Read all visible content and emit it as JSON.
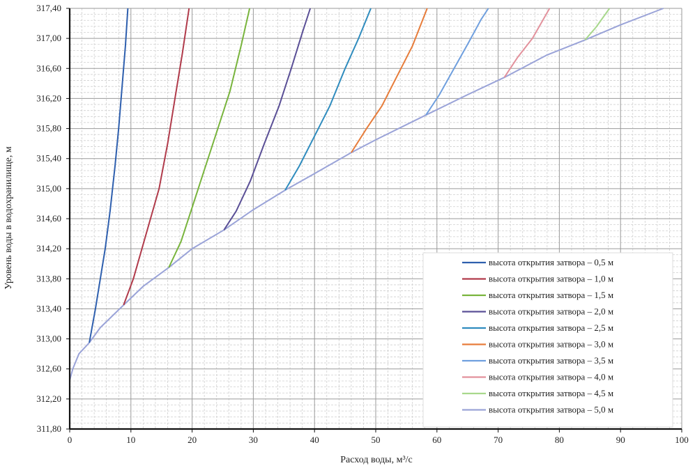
{
  "chart_data": {
    "type": "line",
    "title": "",
    "xlabel": "Расход воды, м³/с",
    "ylabel": "Уровень воды в водохранилище, м",
    "xlim": [
      0,
      100
    ],
    "ylim": [
      311.8,
      317.4
    ],
    "x_ticks": [
      0,
      10,
      20,
      30,
      40,
      50,
      60,
      70,
      80,
      90,
      100
    ],
    "x_tick_labels": [
      "0",
      "10",
      "20",
      "30",
      "40",
      "50",
      "60",
      "70",
      "80",
      "90",
      "100"
    ],
    "y_ticks": [
      311.8,
      312.2,
      312.6,
      313.0,
      313.4,
      313.8,
      314.2,
      314.6,
      315.0,
      315.4,
      315.8,
      316.2,
      316.6,
      317.0,
      317.4
    ],
    "y_tick_labels": [
      "311,80",
      "312,20",
      "312,60",
      "313,00",
      "313,40",
      "313,80",
      "314,20",
      "314,60",
      "315,00",
      "315,40",
      "315,80",
      "316,20",
      "316,60",
      "317,00",
      "317,40"
    ],
    "grid": true,
    "legend_position": "bottom-right",
    "series": [
      {
        "name": "высота открытия затвора – 0,5 м",
        "color": "#2e5fae",
        "points": [
          [
            3.2,
            312.95
          ],
          [
            4.2,
            313.4
          ],
          [
            5.0,
            313.8
          ],
          [
            5.8,
            314.2
          ],
          [
            6.6,
            314.7
          ],
          [
            7.4,
            315.3
          ],
          [
            8.0,
            315.8
          ],
          [
            8.6,
            316.4
          ],
          [
            9.1,
            316.9
          ],
          [
            9.5,
            317.4
          ]
        ]
      },
      {
        "name": "высота открытия затвора – 1,0 м",
        "color": "#b03a4a",
        "points": [
          [
            8.8,
            313.45
          ],
          [
            10.4,
            313.8
          ],
          [
            11.8,
            314.2
          ],
          [
            13.2,
            314.6
          ],
          [
            14.6,
            315.0
          ],
          [
            16.0,
            315.6
          ],
          [
            17.2,
            316.2
          ],
          [
            18.4,
            316.8
          ],
          [
            19.5,
            317.4
          ]
        ]
      },
      {
        "name": "высота открытия затвора – 1,5 м",
        "color": "#78b43c",
        "points": [
          [
            16.2,
            313.95
          ],
          [
            18.2,
            314.3
          ],
          [
            20.2,
            314.8
          ],
          [
            22.2,
            315.3
          ],
          [
            24.2,
            315.8
          ],
          [
            26.2,
            316.3
          ],
          [
            28.0,
            316.9
          ],
          [
            29.4,
            317.4
          ]
        ]
      },
      {
        "name": "высота открытия затвора – 2,0 м",
        "color": "#5a4f96",
        "points": [
          [
            25.2,
            314.45
          ],
          [
            27.2,
            314.7
          ],
          [
            29.5,
            315.1
          ],
          [
            31.8,
            315.6
          ],
          [
            34.2,
            316.1
          ],
          [
            36.2,
            316.6
          ],
          [
            38.1,
            317.1
          ],
          [
            39.3,
            317.4
          ]
        ]
      },
      {
        "name": "высота открытия затвора – 2,5 м",
        "color": "#2f8cbe",
        "points": [
          [
            35.2,
            314.98
          ],
          [
            37.5,
            315.3
          ],
          [
            40.0,
            315.7
          ],
          [
            42.5,
            316.1
          ],
          [
            45.0,
            316.6
          ],
          [
            47.2,
            317.0
          ],
          [
            49.2,
            317.4
          ]
        ]
      },
      {
        "name": "высота открытия затвора – 3,0 м",
        "color": "#e77c3a",
        "points": [
          [
            46.0,
            315.48
          ],
          [
            48.5,
            315.8
          ],
          [
            51.0,
            316.1
          ],
          [
            53.5,
            316.5
          ],
          [
            56.0,
            316.9
          ],
          [
            58.4,
            317.4
          ]
        ]
      },
      {
        "name": "высота открытия затвора – 3,5 м",
        "color": "#6f9fde",
        "points": [
          [
            58.2,
            315.98
          ],
          [
            60.4,
            316.25
          ],
          [
            62.8,
            316.6
          ],
          [
            65.2,
            316.95
          ],
          [
            67.2,
            317.25
          ],
          [
            68.4,
            317.4
          ]
        ]
      },
      {
        "name": "высота открытия затвора – 4,0 м",
        "color": "#e2919c",
        "points": [
          [
            71.0,
            316.48
          ],
          [
            73.2,
            316.75
          ],
          [
            75.6,
            317.0
          ],
          [
            78.4,
            317.4
          ]
        ]
      },
      {
        "name": "высота открытия затвора – 4,5 м",
        "color": "#a8d88c",
        "points": [
          [
            84.2,
            316.98
          ],
          [
            86.0,
            317.15
          ],
          [
            88.2,
            317.4
          ]
        ]
      },
      {
        "name": "высота открытия затвора – 5,0 м",
        "color": "#9aa3d8",
        "points": [
          [
            0.0,
            312.45
          ],
          [
            0.5,
            312.6
          ],
          [
            1.5,
            312.8
          ],
          [
            3.2,
            312.95
          ],
          [
            5.0,
            313.15
          ],
          [
            8.8,
            313.45
          ],
          [
            12.0,
            313.7
          ],
          [
            16.2,
            313.95
          ],
          [
            20.0,
            314.2
          ],
          [
            25.2,
            314.45
          ],
          [
            30.0,
            314.72
          ],
          [
            35.2,
            314.98
          ],
          [
            40.0,
            315.2
          ],
          [
            46.0,
            315.48
          ],
          [
            50.0,
            315.65
          ],
          [
            58.2,
            315.98
          ],
          [
            65.0,
            316.25
          ],
          [
            71.0,
            316.48
          ],
          [
            78.0,
            316.78
          ],
          [
            84.2,
            316.98
          ],
          [
            90.0,
            317.18
          ],
          [
            97.0,
            317.4
          ]
        ]
      }
    ]
  }
}
